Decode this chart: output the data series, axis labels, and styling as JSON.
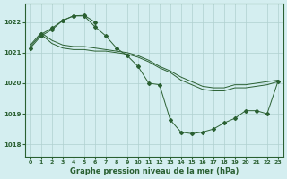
{
  "title": "Graphe pression niveau de la mer (hPa)",
  "bg_color": "#d4eef0",
  "grid_color": "#b0d0d0",
  "line_color": "#2a6032",
  "xlim": [
    -0.5,
    23.5
  ],
  "ylim": [
    1017.6,
    1022.6
  ],
  "yticks": [
    1018,
    1019,
    1020,
    1021,
    1022
  ],
  "xticks": [
    0,
    1,
    2,
    3,
    4,
    5,
    6,
    7,
    8,
    9,
    10,
    11,
    12,
    13,
    14,
    15,
    16,
    17,
    18,
    19,
    20,
    21,
    22,
    23
  ],
  "lines": [
    {
      "x": [
        0,
        1,
        2,
        3,
        4,
        5,
        6,
        7,
        8,
        9,
        10,
        11,
        12,
        13,
        14,
        15,
        16,
        17,
        18,
        19,
        20,
        21,
        22,
        23
      ],
      "y": [
        1021.15,
        1021.55,
        1021.75,
        1022.05,
        1022.2,
        1022.2,
        1021.85,
        1021.55,
        1021.15,
        1020.9,
        1020.55,
        1020.0,
        1019.95,
        1018.8,
        1018.4,
        1018.35,
        1018.4,
        1018.5,
        1018.7,
        1018.85,
        1019.1,
        1019.1,
        1019.0,
        1020.05
      ],
      "markers": true
    },
    {
      "x": [
        0,
        1,
        2,
        3,
        4,
        5,
        6,
        7,
        8,
        9,
        10,
        11,
        12,
        13,
        14,
        15,
        16,
        17,
        18,
        19,
        20,
        21,
        22,
        23
      ],
      "y": [
        1021.2,
        1021.6,
        1021.3,
        1021.15,
        1021.1,
        1021.1,
        1021.05,
        1021.05,
        1021.0,
        1020.95,
        1020.85,
        1020.7,
        1020.5,
        1020.35,
        1020.1,
        1019.95,
        1019.8,
        1019.75,
        1019.75,
        1019.85,
        1019.85,
        1019.9,
        1019.95,
        1020.05
      ],
      "markers": false
    },
    {
      "x": [
        0,
        1,
        2,
        3,
        4,
        5,
        6,
        7,
        8,
        9,
        10,
        11,
        12,
        13,
        14,
        15,
        16,
        17,
        18,
        19,
        20,
        21,
        22,
        23
      ],
      "y": [
        1021.25,
        1021.65,
        1021.4,
        1021.25,
        1021.2,
        1021.2,
        1021.15,
        1021.1,
        1021.05,
        1021.0,
        1020.9,
        1020.75,
        1020.55,
        1020.4,
        1020.2,
        1020.05,
        1019.9,
        1019.85,
        1019.85,
        1019.95,
        1019.95,
        1020.0,
        1020.05,
        1020.1
      ],
      "markers": false
    },
    {
      "x": [
        1,
        2,
        3,
        4,
        5,
        6
      ],
      "y": [
        1021.6,
        1021.8,
        1022.05,
        1022.2,
        1022.22,
        1022.0
      ],
      "markers": true
    }
  ]
}
